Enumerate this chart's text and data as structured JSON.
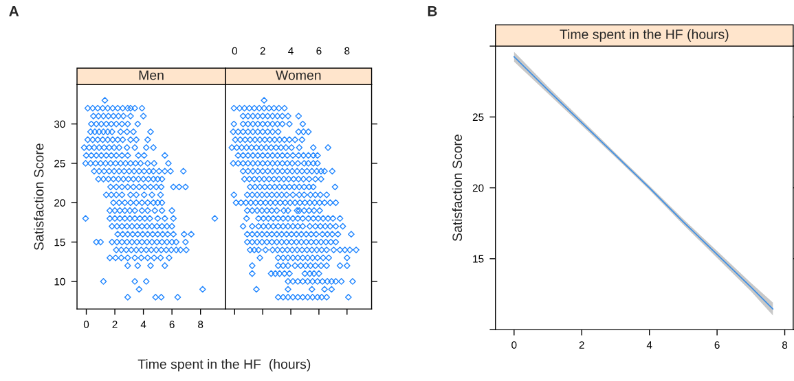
{
  "chart_data": [
    {
      "type": "scatter",
      "title": "Men",
      "xlabel": "Time spent in the HF  (hours)",
      "ylabel": "Satisfaction Score",
      "annotations": [
        "A"
      ],
      "color": "#1f85ff",
      "marker": "diamond",
      "xlim": [
        -0.65,
        9.75
      ],
      "xticks": [
        0,
        2,
        4,
        6,
        8
      ],
      "ylim": [
        6.5,
        35
      ],
      "yticks": [
        10,
        15,
        20,
        25,
        30
      ],
      "series": [
        {
          "x": [
            1.3
          ],
          "values": [
            33
          ]
        },
        {
          "x": [
            0.1,
            0.45,
            0.8,
            1.15,
            1.5,
            1.85,
            2.2,
            2.55,
            2.9,
            3.1,
            3.4,
            3.9
          ],
          "values": [
            32,
            32,
            32,
            32,
            32,
            32,
            32,
            32,
            32,
            32,
            32,
            32
          ]
        },
        {
          "x": [
            0.5,
            0.85,
            1.2,
            1.55,
            1.9,
            2.25,
            2.6,
            3.1,
            4.0
          ],
          "values": [
            31,
            31,
            31,
            31,
            31,
            31,
            31,
            31,
            31
          ]
        },
        {
          "x": [
            0.35,
            0.7,
            1.05,
            1.4,
            1.75,
            2.1,
            2.5,
            2.9,
            3.6
          ],
          "values": [
            30,
            30,
            30,
            30,
            30,
            30,
            30,
            30,
            30
          ]
        },
        {
          "x": [
            0.3,
            0.6,
            0.9,
            1.2,
            1.5,
            1.8,
            2.4,
            2.85,
            3.3,
            4.5
          ],
          "values": [
            29,
            29,
            29,
            29,
            29,
            29,
            29,
            29,
            29,
            29
          ]
        },
        {
          "x": [
            0.1,
            0.45,
            0.8,
            1.15,
            1.5,
            1.85,
            2.2,
            2.55,
            3.1,
            3.5,
            4.3
          ],
          "values": [
            28,
            28,
            28,
            28,
            28,
            28,
            28,
            28,
            28,
            28,
            28
          ]
        },
        {
          "x": [
            -0.15,
            0.2,
            0.55,
            0.9,
            1.25,
            1.6,
            1.95,
            2.3,
            2.85,
            3.4,
            4.2,
            4.7
          ],
          "values": [
            27,
            27,
            27,
            27,
            27,
            27,
            27,
            27,
            27,
            27,
            27,
            27
          ]
        },
        {
          "x": [
            0.0,
            0.35,
            0.7,
            1.05,
            1.4,
            1.75,
            2.1,
            2.5,
            2.9,
            3.65,
            4.05,
            5.5
          ],
          "values": [
            26,
            26,
            26,
            26,
            26,
            26,
            26,
            26,
            26,
            26,
            26,
            26
          ]
        },
        {
          "x": [
            -0.05,
            0.3,
            0.65,
            1.0,
            1.35,
            1.7,
            2.05,
            2.4,
            2.75,
            3.1,
            3.45,
            3.8,
            4.3,
            4.75,
            5.75
          ],
          "values": [
            25,
            25,
            25,
            25,
            25,
            25,
            25,
            25,
            25,
            25,
            25,
            25,
            25,
            25,
            25
          ]
        },
        {
          "x": [
            0.55,
            0.9,
            1.25,
            1.6,
            1.95,
            2.3,
            2.65,
            3.0,
            3.35,
            3.7,
            4.05,
            4.4,
            4.7,
            5.1,
            5.5,
            5.9,
            6.8
          ],
          "values": [
            24,
            24,
            24,
            24,
            24,
            24,
            24,
            24,
            24,
            24,
            24,
            24,
            24,
            24,
            24,
            24,
            24
          ]
        },
        {
          "x": [
            0.85,
            1.2,
            1.55,
            1.9,
            2.25,
            2.6,
            2.95,
            3.3,
            3.65,
            4.0,
            4.35,
            4.7,
            5.0,
            5.3
          ],
          "values": [
            23,
            23,
            23,
            23,
            23,
            23,
            23,
            23,
            23,
            23,
            23,
            23,
            23,
            23
          ]
        },
        {
          "x": [
            1.7,
            2.1,
            2.5,
            2.9,
            3.3,
            3.7,
            4.1,
            4.5,
            4.9,
            5.25,
            6.1,
            6.5,
            6.95
          ],
          "values": [
            22,
            22,
            22,
            22,
            22,
            22,
            22,
            22,
            22,
            22,
            22,
            22,
            22
          ]
        },
        {
          "x": [
            1.4,
            1.75,
            2.1,
            2.5,
            3.1,
            3.5,
            4.05,
            4.6,
            5.2
          ],
          "values": [
            21,
            21,
            21,
            21,
            21,
            21,
            21,
            21,
            21
          ]
        },
        {
          "x": [
            1.9,
            2.3,
            2.7,
            3.1,
            3.5,
            3.9,
            4.3,
            4.7,
            5.0,
            5.3
          ],
          "values": [
            20,
            20,
            20,
            20,
            20,
            20,
            20,
            20,
            20,
            20
          ]
        },
        {
          "x": [
            1.65,
            2.0,
            2.35,
            2.7,
            3.05,
            3.4,
            3.9,
            4.3,
            4.8,
            5.3,
            6.0
          ],
          "values": [
            19,
            19,
            19,
            19,
            19,
            19,
            19,
            19,
            19,
            19,
            19
          ]
        },
        {
          "x": [
            -0.05,
            1.65,
            2.0,
            2.35,
            2.7,
            3.05,
            3.4,
            3.75,
            4.1,
            4.45,
            5.0,
            5.5,
            6.1,
            9.0
          ],
          "values": [
            18,
            18,
            18,
            18,
            18,
            18,
            18,
            18,
            18,
            18,
            18,
            18,
            18,
            18
          ]
        },
        {
          "x": [
            1.8,
            2.15,
            2.5,
            2.85,
            3.2,
            3.55,
            3.9,
            4.25,
            4.6,
            4.95,
            5.3,
            5.65,
            6.0
          ],
          "values": [
            17,
            17,
            17,
            17,
            17,
            17,
            17,
            17,
            17,
            17,
            17,
            17,
            17
          ]
        },
        {
          "x": [
            2.2,
            2.55,
            2.9,
            3.25,
            3.6,
            3.95,
            4.3,
            4.65,
            5.0,
            5.35,
            5.7,
            6.1,
            6.85,
            7.35
          ],
          "values": [
            16,
            16,
            16,
            16,
            16,
            16,
            16,
            16,
            16,
            16,
            16,
            16,
            16,
            16
          ]
        },
        {
          "x": [
            0.7,
            1.0,
            1.8,
            2.15,
            2.5,
            2.85,
            3.2,
            3.55,
            3.9,
            4.25,
            4.6,
            4.95,
            5.3,
            5.65,
            6.0,
            6.3,
            6.95
          ],
          "values": [
            15,
            15,
            15,
            15,
            15,
            15,
            15,
            15,
            15,
            15,
            15,
            15,
            15,
            15,
            15,
            15,
            15
          ]
        },
        {
          "x": [
            2.1,
            2.45,
            2.8,
            3.15,
            3.5,
            3.85,
            4.2,
            4.55,
            4.9,
            5.25,
            5.6,
            5.95,
            6.3,
            6.6,
            7.0
          ],
          "values": [
            14,
            14,
            14,
            14,
            14,
            14,
            14,
            14,
            14,
            14,
            14,
            14,
            14,
            14,
            14
          ]
        },
        {
          "x": [
            1.65,
            2.05,
            2.45,
            2.9,
            3.4,
            3.85,
            4.3,
            4.75,
            5.2,
            5.8
          ],
          "values": [
            13,
            13,
            13,
            13,
            13,
            13,
            13,
            13,
            13,
            13
          ]
        },
        {
          "x": [
            2.9,
            3.6,
            4.5,
            5.5
          ],
          "values": [
            12,
            12,
            12,
            12
          ]
        },
        {
          "x": [
            1.2,
            3.4,
            4.2
          ],
          "values": [
            10,
            10,
            10
          ]
        },
        {
          "x": [
            3.7,
            8.15
          ],
          "values": [
            9,
            9
          ]
        },
        {
          "x": [
            2.9,
            4.85,
            5.25,
            6.4
          ],
          "values": [
            8,
            8,
            8,
            8
          ]
        }
      ]
    },
    {
      "type": "scatter",
      "title": "Women",
      "color": "#1f85ff",
      "marker": "diamond",
      "xlim": [
        -0.65,
        9.75
      ],
      "xticks": [
        0,
        2,
        4,
        6,
        8
      ],
      "ylim": [
        6.5,
        35
      ],
      "yticks": [
        10,
        15,
        20,
        25,
        30
      ],
      "tick_labels": "x",
      "series": [
        {
          "x": [
            2.1
          ],
          "values": [
            33
          ]
        },
        {
          "x": [
            -0.05,
            0.35,
            0.7,
            1.05,
            1.4,
            1.75,
            2.1,
            2.45,
            2.8,
            3.15,
            3.55
          ],
          "values": [
            32,
            32,
            32,
            32,
            32,
            32,
            32,
            32,
            32,
            32,
            32
          ]
        },
        {
          "x": [
            0.6,
            0.95,
            1.3,
            1.65,
            2.0,
            2.35,
            2.7,
            3.05,
            3.4,
            3.8,
            4.55
          ],
          "values": [
            31,
            31,
            31,
            31,
            31,
            31,
            31,
            31,
            31,
            31,
            31
          ]
        },
        {
          "x": [
            -0.05,
            0.6,
            0.95,
            1.3,
            1.65,
            2.0,
            2.35,
            2.7,
            3.05,
            3.4,
            3.9,
            4.85
          ],
          "values": [
            30,
            30,
            30,
            30,
            30,
            30,
            30,
            30,
            30,
            30,
            30,
            30
          ]
        },
        {
          "x": [
            -0.1,
            0.25,
            0.6,
            0.95,
            1.3,
            1.65,
            2.0,
            2.35,
            2.7,
            3.1,
            4.55,
            4.9,
            5.25
          ],
          "values": [
            29,
            29,
            29,
            29,
            29,
            29,
            29,
            29,
            29,
            29,
            29,
            29,
            29
          ]
        },
        {
          "x": [
            0.05,
            0.4,
            0.75,
            1.1,
            1.45,
            1.8,
            2.15,
            2.5,
            2.85,
            3.2,
            3.55,
            3.9,
            4.3,
            4.8
          ],
          "values": [
            28,
            28,
            28,
            28,
            28,
            28,
            28,
            28,
            28,
            28,
            28,
            28,
            28,
            28
          ]
        },
        {
          "x": [
            -0.2,
            0.15,
            0.5,
            0.85,
            1.2,
            1.55,
            1.9,
            2.25,
            2.6,
            2.95,
            3.3,
            3.65,
            4.05,
            4.6,
            5.6,
            6.65
          ],
          "values": [
            27,
            27,
            27,
            27,
            27,
            27,
            27,
            27,
            27,
            27,
            27,
            27,
            27,
            27,
            27,
            27
          ]
        },
        {
          "x": [
            0.25,
            0.6,
            0.95,
            1.3,
            1.65,
            2.0,
            2.35,
            2.7,
            3.05,
            3.4,
            3.75,
            4.15,
            4.55,
            4.9,
            5.25,
            5.6,
            5.9
          ],
          "values": [
            26,
            26,
            26,
            26,
            26,
            26,
            26,
            26,
            26,
            26,
            26,
            26,
            26,
            26,
            26,
            26,
            26
          ]
        },
        {
          "x": [
            -0.1,
            0.25,
            0.6,
            0.95,
            1.3,
            1.65,
            2.0,
            2.35,
            2.7,
            3.05,
            3.4,
            3.75,
            4.1,
            4.5,
            4.95,
            5.25,
            5.6,
            5.9
          ],
          "values": [
            25,
            25,
            25,
            25,
            25,
            25,
            25,
            25,
            25,
            25,
            25,
            25,
            25,
            25,
            25,
            25,
            25,
            25
          ]
        },
        {
          "x": [
            0.6,
            0.95,
            1.3,
            1.65,
            2.0,
            2.35,
            2.7,
            3.05,
            3.4,
            3.75,
            4.1,
            4.45,
            4.8,
            5.15,
            5.5,
            5.85,
            6.15,
            6.4,
            6.95
          ],
          "values": [
            24,
            24,
            24,
            24,
            24,
            24,
            24,
            24,
            24,
            24,
            24,
            24,
            24,
            24,
            24,
            24,
            24,
            24,
            24
          ]
        },
        {
          "x": [
            0.7,
            1.05,
            1.4,
            1.75,
            2.1,
            2.45,
            2.8,
            3.15,
            3.5,
            3.85,
            4.2,
            4.55,
            4.9,
            5.3,
            5.75,
            6.15
          ],
          "values": [
            23,
            23,
            23,
            23,
            23,
            23,
            23,
            23,
            23,
            23,
            23,
            23,
            23,
            23,
            23,
            23
          ]
        },
        {
          "x": [
            1.1,
            1.45,
            1.8,
            2.15,
            2.5,
            2.85,
            3.2,
            3.55,
            3.9,
            4.25,
            4.6,
            4.95,
            5.3,
            5.6,
            7.15
          ],
          "values": [
            22,
            22,
            22,
            22,
            22,
            22,
            22,
            22,
            22,
            22,
            22,
            22,
            22,
            22,
            22
          ]
        },
        {
          "x": [
            -0.05,
            0.9,
            1.25,
            1.6,
            1.95,
            2.3,
            2.65,
            3.0,
            3.35,
            3.7,
            4.15,
            4.6,
            4.95,
            5.4,
            5.75,
            6.1,
            6.55
          ],
          "values": [
            21,
            21,
            21,
            21,
            21,
            21,
            21,
            21,
            21,
            21,
            21,
            21,
            21,
            21,
            21,
            21,
            21
          ]
        },
        {
          "x": [
            0.1,
            0.45,
            0.8,
            1.15,
            1.5,
            1.85,
            2.2,
            2.55,
            2.9,
            3.25,
            3.6,
            3.95,
            4.3,
            4.65,
            5.0,
            5.35,
            5.7,
            6.05,
            6.4,
            6.8,
            7.2
          ],
          "values": [
            20,
            20,
            20,
            20,
            20,
            20,
            20,
            20,
            20,
            20,
            20,
            20,
            20,
            20,
            20,
            20,
            20,
            20,
            20,
            20,
            20
          ]
        },
        {
          "x": [
            0.9,
            1.25,
            1.6,
            1.95,
            2.3,
            2.65,
            3.0,
            3.5,
            3.8,
            4.45,
            4.6,
            4.95,
            5.3,
            5.65,
            6.05
          ],
          "values": [
            19,
            19,
            19,
            19,
            19,
            19,
            19,
            19,
            19,
            19,
            19,
            19,
            19,
            19,
            19
          ]
        },
        {
          "x": [
            0.85,
            1.7,
            2.05,
            2.4,
            2.75,
            3.1,
            3.45,
            3.8,
            4.15,
            4.5,
            4.85,
            5.25,
            5.6,
            5.95,
            6.3,
            6.65,
            7.0,
            7.5
          ],
          "values": [
            18,
            18,
            18,
            18,
            18,
            18,
            18,
            18,
            18,
            18,
            18,
            18,
            18,
            18,
            18,
            18,
            18,
            18
          ]
        },
        {
          "x": [
            0.6,
            1.25,
            1.7,
            2.05,
            2.4,
            2.75,
            3.1,
            3.45,
            3.8,
            4.15,
            4.5,
            4.85,
            5.35,
            5.75,
            6.1,
            6.45,
            6.8,
            7.2,
            7.7
          ],
          "values": [
            17,
            17,
            17,
            17,
            17,
            17,
            17,
            17,
            17,
            17,
            17,
            17,
            17,
            17,
            17,
            17,
            17,
            17,
            17
          ]
        },
        {
          "x": [
            0.9,
            1.25,
            1.6,
            1.95,
            2.3,
            2.65,
            3.0,
            3.35,
            3.7,
            4.05,
            4.4,
            4.75,
            5.1,
            5.45,
            5.8,
            6.25,
            6.6,
            6.95,
            7.35,
            8.3
          ],
          "values": [
            16,
            16,
            16,
            16,
            16,
            16,
            16,
            16,
            16,
            16,
            16,
            16,
            16,
            16,
            16,
            16,
            16,
            16,
            16,
            16
          ]
        },
        {
          "x": [
            0.9,
            1.25,
            1.6,
            1.95,
            2.3,
            2.65,
            3.0,
            3.35,
            3.7,
            4.05,
            4.4,
            4.75,
            5.1,
            5.45,
            5.8,
            6.15,
            6.5,
            6.85,
            7.2
          ],
          "values": [
            15,
            15,
            15,
            15,
            15,
            15,
            15,
            15,
            15,
            15,
            15,
            15,
            15,
            15,
            15,
            15,
            15,
            15,
            15
          ]
        },
        {
          "x": [
            1.1,
            1.4,
            1.7,
            2.2,
            2.7,
            3.05,
            3.4,
            3.75,
            4.1,
            4.45,
            4.8,
            5.15,
            5.5,
            5.85,
            6.2,
            6.55,
            7.05,
            7.5,
            7.85,
            8.2,
            8.65
          ],
          "values": [
            14,
            14,
            14,
            14,
            14,
            14,
            14,
            14,
            14,
            14,
            14,
            14,
            14,
            14,
            14,
            14,
            14,
            14,
            14,
            14,
            14
          ]
        },
        {
          "x": [
            1.8,
            3.1,
            3.45,
            3.8,
            4.15,
            4.5,
            4.85,
            5.2,
            5.55,
            5.9,
            6.3,
            6.7,
            8.0
          ],
          "values": [
            13,
            13,
            13,
            13,
            13,
            13,
            13,
            13,
            13,
            13,
            13,
            13,
            13
          ]
        },
        {
          "x": [
            1.25,
            3.1,
            3.45,
            3.8,
            4.3,
            4.7,
            5.05,
            5.4,
            5.75,
            6.15,
            6.55,
            7.5,
            8.0
          ],
          "values": [
            12,
            12,
            12,
            12,
            12,
            12,
            12,
            12,
            12,
            12,
            12,
            12,
            12
          ]
        },
        {
          "x": [
            1.25,
            2.6,
            2.9,
            3.2,
            3.55,
            3.9,
            5.0,
            5.35,
            5.65,
            6.0
          ],
          "values": [
            11,
            11,
            11,
            11,
            11,
            11,
            11,
            11,
            11,
            11
          ]
        },
        {
          "x": [
            3.8,
            4.15,
            4.5,
            4.85,
            5.2,
            5.55,
            5.9,
            6.25,
            6.6,
            6.9,
            7.2,
            7.6,
            8.4
          ],
          "values": [
            10,
            10,
            10,
            10,
            10,
            10,
            10,
            10,
            10,
            10,
            10,
            10,
            10
          ]
        },
        {
          "x": [
            1.55,
            3.8,
            5.5,
            6.4,
            6.9
          ],
          "values": [
            9,
            9,
            9,
            9,
            9
          ]
        },
        {
          "x": [
            3.1,
            3.45,
            3.8,
            4.15,
            4.5,
            4.85,
            5.2,
            5.55,
            5.9,
            6.2,
            6.55,
            8.1
          ],
          "values": [
            8,
            8,
            8,
            8,
            8,
            8,
            8,
            8,
            8,
            8,
            8,
            8
          ]
        }
      ]
    },
    {
      "type": "line",
      "title": "Time spent in the HF (hours)",
      "ylabel": "Satisfaction Score",
      "annotations": [
        "B"
      ],
      "line_style": "solid",
      "marker": "none",
      "xlim": [
        -0.55,
        8.25
      ],
      "xticks": [
        0,
        2,
        4,
        6,
        8
      ],
      "ylim": [
        10,
        30
      ],
      "yticks": [
        {
          "value": 10,
          "label": null
        },
        15,
        20,
        25,
        {
          "value": 30,
          "label": null
        }
      ],
      "series": [
        {
          "color": "#3a8ee6",
          "x": [
            0,
            1,
            2,
            3,
            4,
            5,
            6,
            7,
            7.65
          ],
          "values": [
            29.25,
            26.9,
            24.6,
            22.3,
            20.0,
            17.6,
            15.3,
            13.0,
            11.45
          ],
          "lower": [
            28.9,
            26.65,
            24.4,
            22.15,
            19.85,
            17.4,
            15.05,
            12.7,
            11.0
          ],
          "upper": [
            29.6,
            27.15,
            24.8,
            22.45,
            20.15,
            17.8,
            15.55,
            13.3,
            11.9
          ]
        }
      ]
    }
  ]
}
